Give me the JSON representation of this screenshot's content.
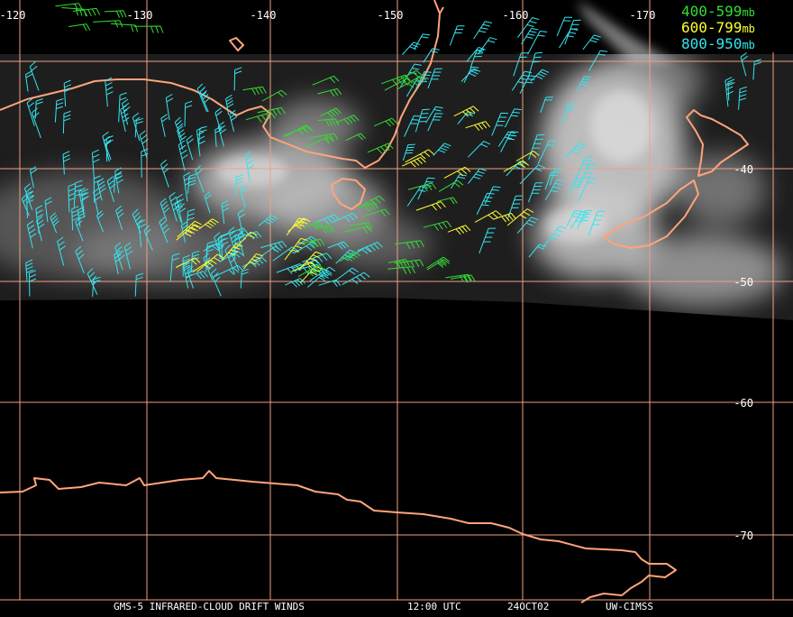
{
  "longitude_labels": [
    "-120",
    "-130",
    "-140",
    "-150",
    "-160",
    "-170"
  ],
  "latitude_labels": [
    "-40",
    "-50",
    "-60",
    "-70"
  ],
  "legend": [
    {
      "range": "400-599",
      "unit": "mb"
    },
    {
      "range": "600-799",
      "unit": "mb"
    },
    {
      "range": "800-950",
      "unit": "mb"
    }
  ],
  "footer": {
    "product": "GMS-5 INFRARED-CLOUD DRIFT WINDS",
    "time": "12:00 UTC",
    "date": "24OCT02",
    "source": "UW-CIMSS"
  }
}
